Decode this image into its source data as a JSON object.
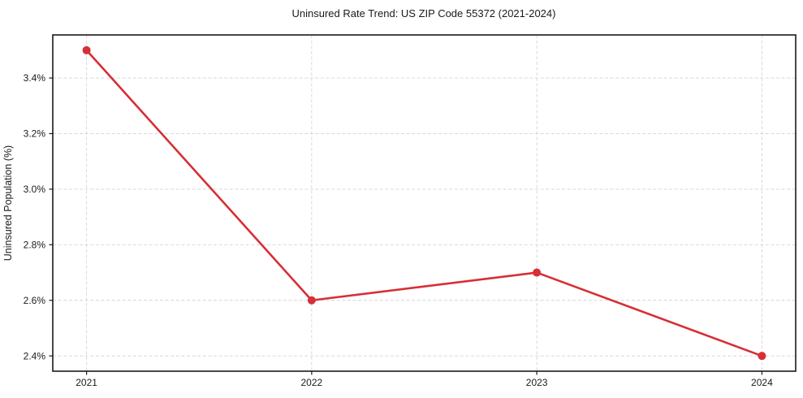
{
  "chart_data": {
    "type": "line",
    "title": "Uninsured Rate Trend: US ZIP Code 55372 (2021-2024)",
    "xlabel": "",
    "ylabel": "Uninsured Population (%)",
    "x": [
      2021,
      2022,
      2023,
      2024
    ],
    "x_tick_labels": [
      "2021",
      "2022",
      "2023",
      "2024"
    ],
    "series": [
      {
        "name": "Uninsured rate",
        "values": [
          3.5,
          2.6,
          2.7,
          2.4
        ],
        "color": "#d62f35",
        "marker": "circle"
      }
    ],
    "y_ticks": [
      2.4,
      2.6,
      2.8,
      3.0,
      3.2,
      3.4
    ],
    "y_tick_labels": [
      "2.4%",
      "2.6%",
      "2.8%",
      "3.0%",
      "3.2%",
      "3.4%"
    ],
    "xlim": [
      2020.85,
      2024.15
    ],
    "ylim": [
      2.345,
      3.555
    ],
    "grid": true,
    "grid_style": "dashed",
    "legend": "none",
    "colors": {
      "line": "#d62f35",
      "grid": "#d4d4d4",
      "axis": "#1a1a1a",
      "text": "#1a1a1a",
      "background": "#ffffff"
    }
  }
}
